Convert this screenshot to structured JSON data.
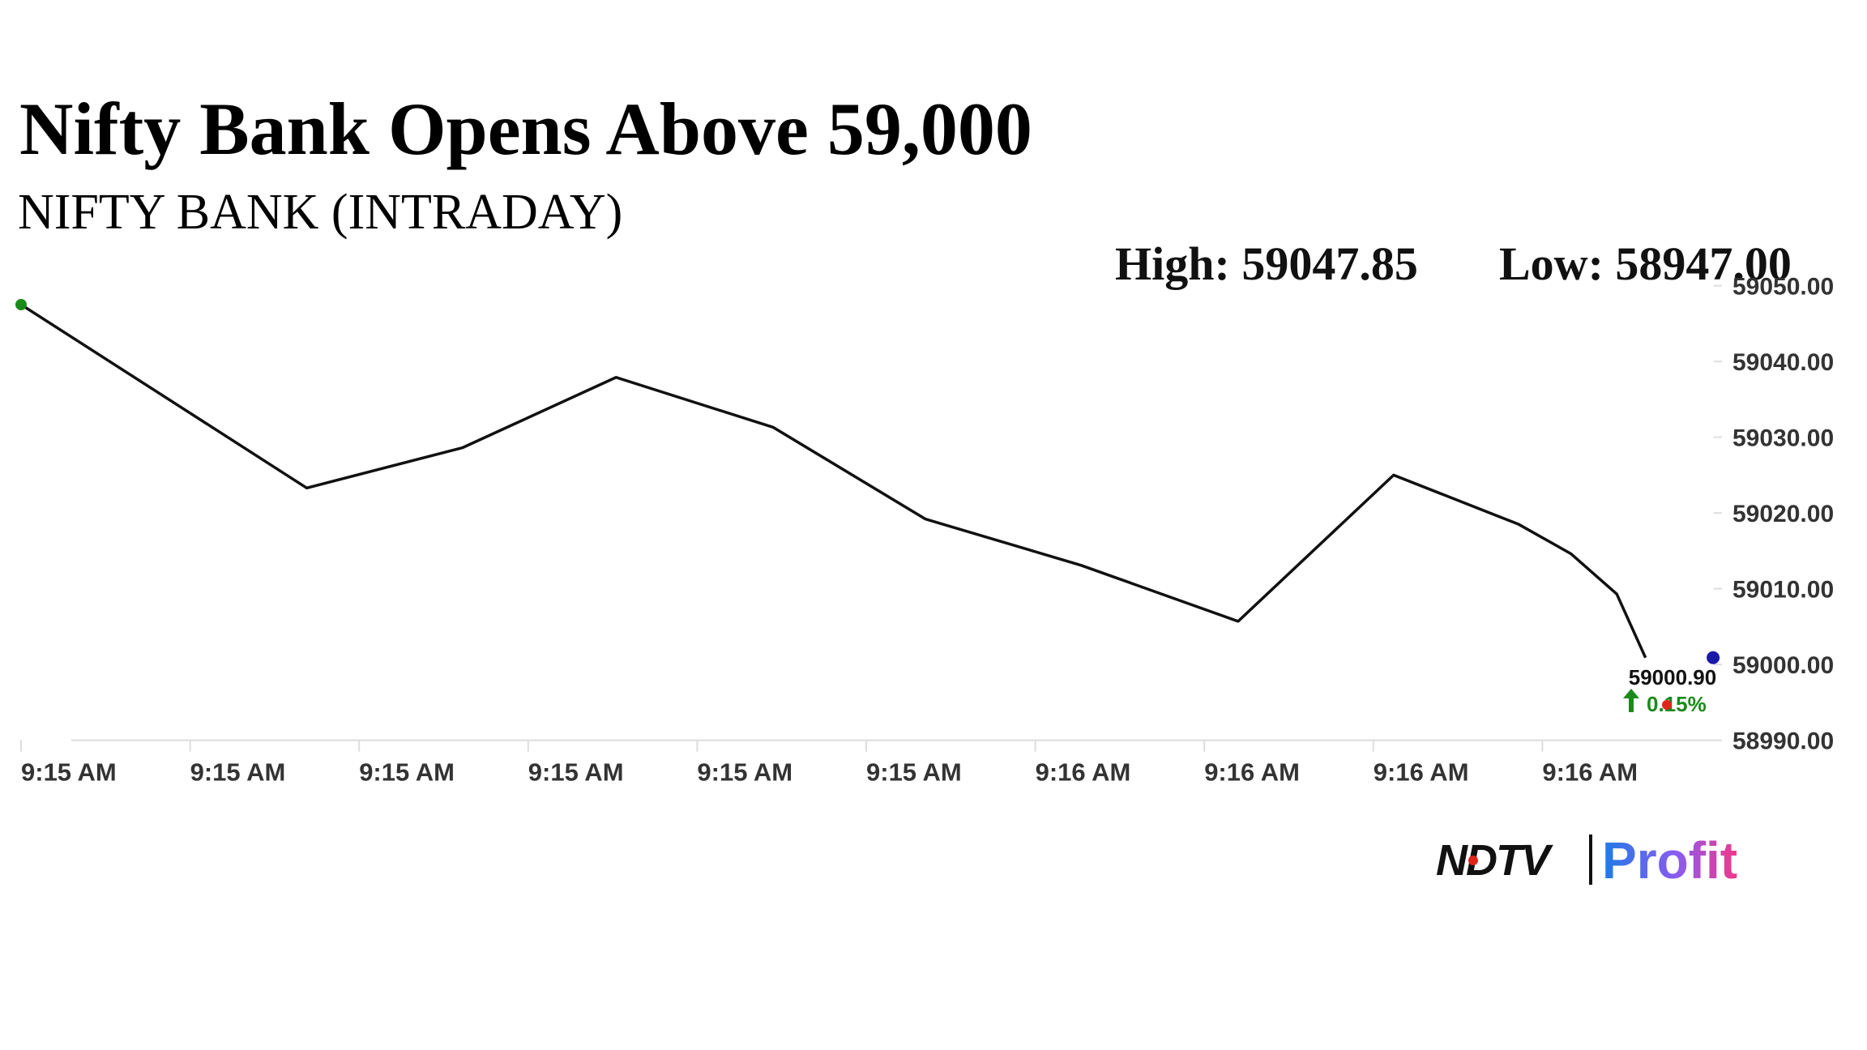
{
  "chart_data": {
    "type": "line",
    "title": "Nifty Bank Opens Above 59,000",
    "subtitle": "NIFTY BANK (INTRADAY)",
    "stats": [
      {
        "label": "High:",
        "value": "59047.85"
      },
      {
        "label": "Low:",
        "value": "58947.00"
      }
    ],
    "x": [
      0,
      1.69,
      2.61,
      3.52,
      4.45,
      5.35,
      6.27,
      7.2,
      8.12,
      8.86,
      9.17,
      9.44,
      9.61
    ],
    "series": [
      {
        "name": "NIFTY BANK",
        "color": "#111111",
        "values": [
          59047.5,
          59023.3,
          59028.6,
          59037.9,
          59031.3,
          59019.2,
          59013.1,
          59005.7,
          59025.0,
          59018.5,
          59014.6,
          59009.3,
          59000.9
        ]
      }
    ],
    "xlim": [
      0,
      10.01
    ],
    "xticks": [
      {
        "value": 0,
        "label": "9:15 AM"
      },
      {
        "value": 1,
        "label": "9:15 AM"
      },
      {
        "value": 2,
        "label": "9:15 AM"
      },
      {
        "value": 3,
        "label": "9:15 AM"
      },
      {
        "value": 4,
        "label": "9:15 AM"
      },
      {
        "value": 5,
        "label": "9:15 AM"
      },
      {
        "value": 6,
        "label": "9:16 AM"
      },
      {
        "value": 7,
        "label": "9:16 AM"
      },
      {
        "value": 8,
        "label": "9:16 AM"
      },
      {
        "value": 9,
        "label": "9:16 AM"
      }
    ],
    "ylim": [
      58990,
      59050
    ],
    "yticks": [
      {
        "value": 58990,
        "label": "58990.00"
      },
      {
        "value": 59000,
        "label": "59000.00"
      },
      {
        "value": 59010,
        "label": "59010.00"
      },
      {
        "value": 59020,
        "label": "59020.00"
      },
      {
        "value": 59030,
        "label": "59030.00"
      },
      {
        "value": 59040,
        "label": "59040.00"
      },
      {
        "value": 59050,
        "label": "59050.00"
      }
    ],
    "last": {
      "value": 59000.9,
      "label": "59000.90",
      "change": "0.15%"
    },
    "start_color": "#1a8a1a",
    "last_color": "#1a1aa8",
    "change_color": "#1a8a1a",
    "logo": {
      "brand": "NDTV",
      "product": "Profit"
    }
  }
}
